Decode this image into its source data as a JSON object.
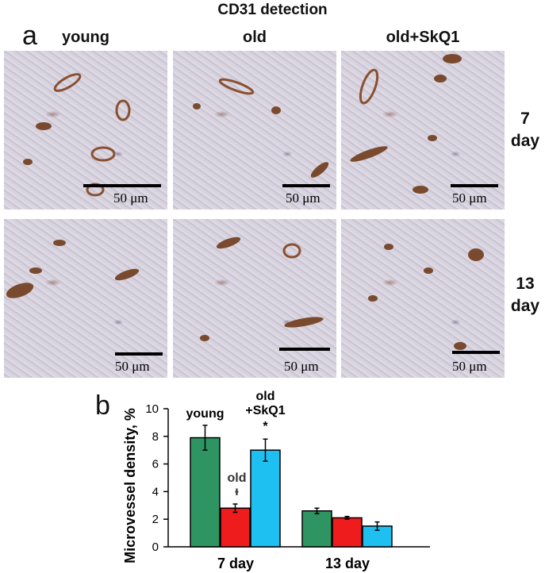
{
  "figure_title": "CD31 detection",
  "panel_a_letter": "a",
  "panel_b_letter": "b",
  "columns": [
    "young",
    "old",
    "old+SkQ1"
  ],
  "rows": [
    {
      "line1": "7",
      "line2": "day"
    },
    {
      "line1": "13",
      "line2": "day"
    }
  ],
  "scale_bar_label": "50 μm",
  "chart_data": {
    "type": "bar",
    "categories": [
      "7 day",
      "13 day"
    ],
    "series": [
      {
        "name": "young",
        "color": "#2e9462",
        "values": [
          7.9,
          2.6
        ],
        "errors": [
          0.9,
          0.2
        ]
      },
      {
        "name": "old",
        "color": "#ee1c1c",
        "values": [
          2.8,
          2.1
        ],
        "errors": [
          0.3,
          0.1
        ]
      },
      {
        "name": "old+SkQ1",
        "color": "#1ec0f2",
        "values": [
          7.0,
          1.5
        ],
        "errors": [
          0.8,
          0.3
        ]
      }
    ],
    "ylabel": "Microvessel density, %",
    "ylim": [
      0,
      10
    ],
    "yticks": [
      0,
      2,
      4,
      6,
      8,
      10
    ],
    "grid": false,
    "annotations": {
      "young": "young",
      "old": "old",
      "old_sig": "ᵻ",
      "skq1_line1": "old",
      "skq1_line2": "+SkQ1",
      "skq1_sig": "*"
    }
  }
}
